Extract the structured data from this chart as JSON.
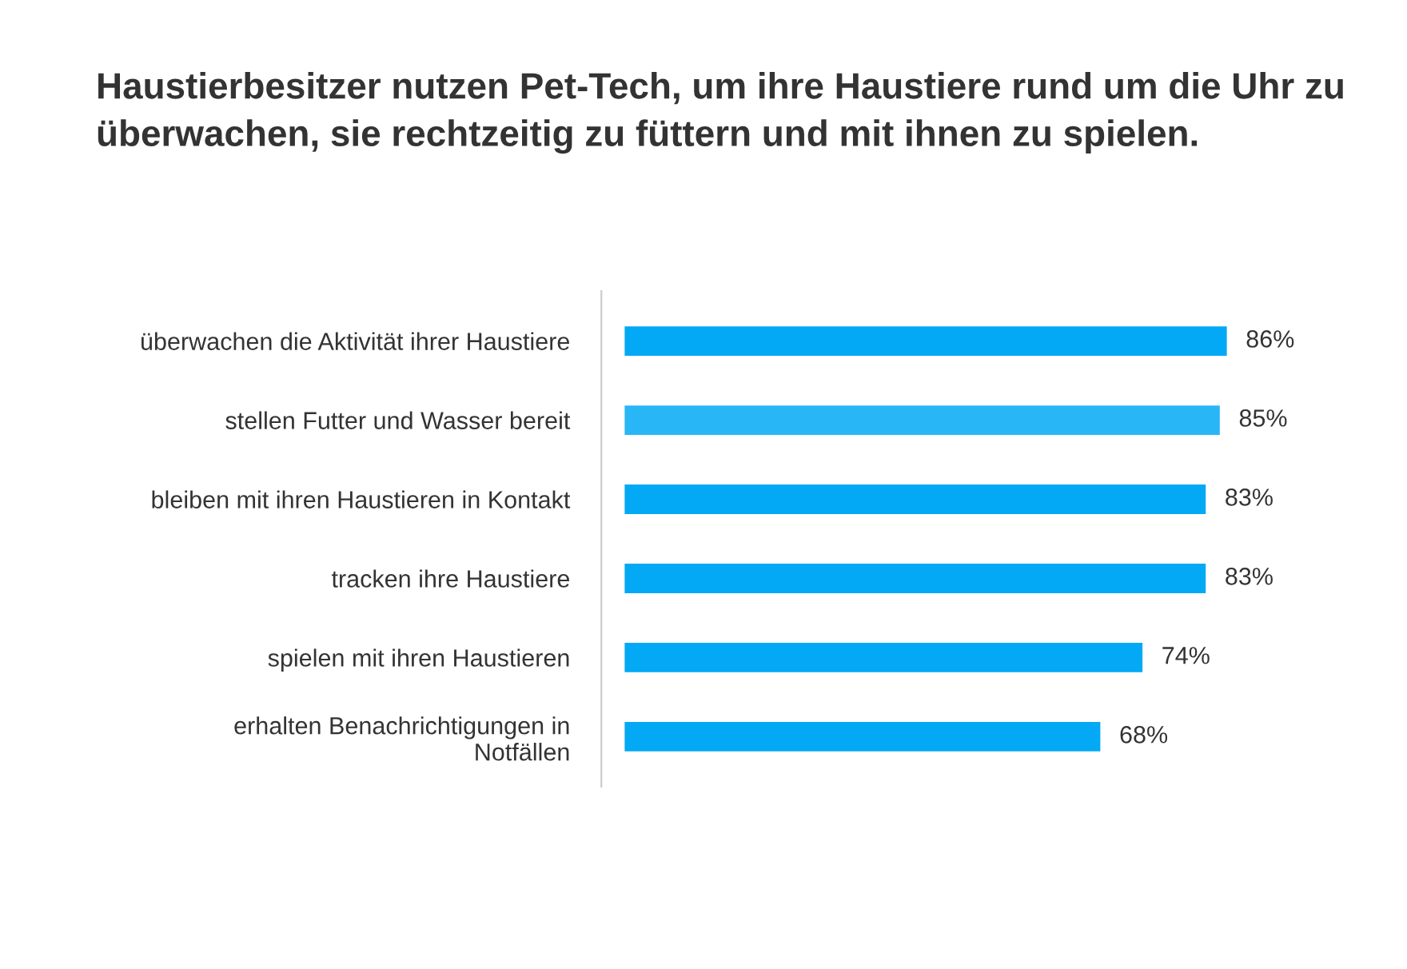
{
  "chart_data": {
    "type": "bar",
    "orientation": "horizontal",
    "title": "Haustierbesitzer nutzen Pet-Tech, um ihre Haustiere rund um die Uhr zu überwachen, sie rechtzeitig zu füttern und mit ihnen zu spielen.",
    "categories": [
      "überwachen die Aktivität ihrer Haustiere",
      "stellen Futter und Wasser bereit",
      "bleiben mit ihren Haustieren in Kontakt",
      "tracken ihre Haustiere",
      "spielen mit ihren Haustieren",
      "erhalten Benachrichtigungen in\nNotfällen"
    ],
    "values": [
      86,
      85,
      83,
      83,
      74,
      68
    ],
    "colors": [
      "#03a9f4",
      "#29b6f6",
      "#03a9f4",
      "#03a9f4",
      "#03a9f4",
      "#03a9f4"
    ],
    "value_labels": [
      "86%",
      "85%",
      "83%",
      "83%",
      "74%",
      "68%"
    ],
    "grid": false,
    "legend": false
  }
}
